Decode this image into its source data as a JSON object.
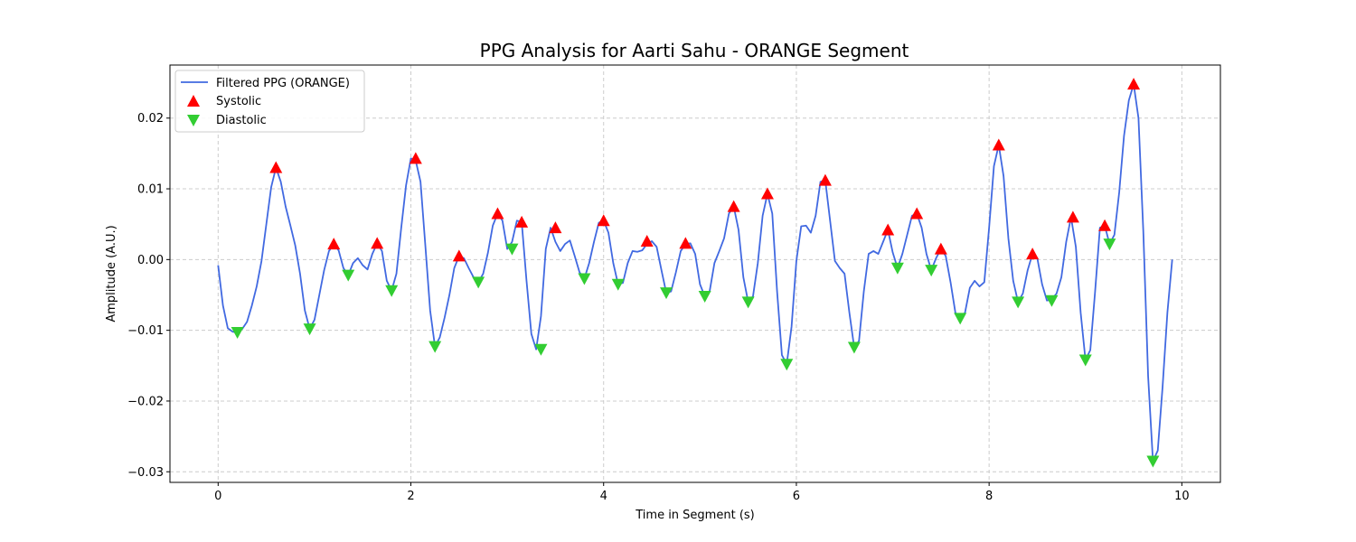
{
  "chart_data": {
    "type": "line",
    "title": "PPG Analysis for Aarti Sahu - ORANGE Segment",
    "xlabel": "Time in Segment (s)",
    "ylabel": "Amplitude (A.U.)",
    "xlim": [
      -0.5,
      10.4
    ],
    "ylim": [
      -0.0315,
      0.0275
    ],
    "xticks": [
      0,
      2,
      4,
      6,
      8,
      10
    ],
    "xtick_labels": [
      "0",
      "2",
      "4",
      "6",
      "8",
      "10"
    ],
    "yticks": [
      0.02,
      0.01,
      0.0,
      -0.01,
      -0.02,
      -0.03
    ],
    "ytick_labels": [
      "0.02",
      "0.01",
      "0.00",
      "−0.01",
      "−0.02",
      "−0.03"
    ],
    "grid": true,
    "legend_position": "top-left",
    "series": [
      {
        "name": "Filtered PPG (ORANGE)",
        "kind": "line",
        "color": "#4169e1",
        "x": [
          0.0,
          0.05,
          0.1,
          0.15,
          0.2,
          0.25,
          0.3,
          0.35,
          0.4,
          0.45,
          0.5,
          0.55,
          0.6,
          0.65,
          0.7,
          0.75,
          0.8,
          0.85,
          0.9,
          0.95,
          1.0,
          1.05,
          1.1,
          1.15,
          1.2,
          1.25,
          1.3,
          1.35,
          1.4,
          1.45,
          1.5,
          1.55,
          1.6,
          1.65,
          1.7,
          1.75,
          1.8,
          1.85,
          1.9,
          1.95,
          2.0,
          2.05,
          2.1,
          2.15,
          2.2,
          2.25,
          2.3,
          2.35,
          2.4,
          2.45,
          2.5,
          2.55,
          2.6,
          2.65,
          2.7,
          2.75,
          2.8,
          2.85,
          2.9,
          2.95,
          3.0,
          3.05,
          3.1,
          3.15,
          3.2,
          3.25,
          3.3,
          3.35,
          3.4,
          3.45,
          3.5,
          3.55,
          3.6,
          3.65,
          3.7,
          3.75,
          3.8,
          3.85,
          3.9,
          3.95,
          4.0,
          4.05,
          4.1,
          4.15,
          4.2,
          4.25,
          4.3,
          4.35,
          4.4,
          4.45,
          4.5,
          4.55,
          4.6,
          4.65,
          4.7,
          4.75,
          4.8,
          4.85,
          4.9,
          4.95,
          5.0,
          5.05,
          5.1,
          5.15,
          5.2,
          5.25,
          5.3,
          5.35,
          5.4,
          5.45,
          5.5,
          5.55,
          5.6,
          5.65,
          5.7,
          5.75,
          5.8,
          5.85,
          5.9,
          5.95,
          6.0,
          6.05,
          6.1,
          6.15,
          6.2,
          6.25,
          6.3,
          6.35,
          6.4,
          6.45,
          6.5,
          6.55,
          6.6,
          6.65,
          6.7,
          6.75,
          6.8,
          6.85,
          6.9,
          6.95,
          7.0,
          7.05,
          7.1,
          7.15,
          7.2,
          7.25,
          7.3,
          7.35,
          7.4,
          7.45,
          7.5,
          7.55,
          7.6,
          7.65,
          7.7,
          7.75,
          7.8,
          7.85,
          7.9,
          7.95,
          8.0,
          8.05,
          8.1,
          8.15,
          8.2,
          8.25,
          8.3,
          8.35,
          8.4,
          8.45,
          8.5,
          8.55,
          8.6,
          8.65,
          8.7,
          8.75,
          8.8,
          8.85,
          8.9,
          8.95,
          9.0,
          9.05,
          9.1,
          9.15,
          9.2,
          9.25,
          9.3,
          9.35,
          9.4,
          9.45,
          9.5,
          9.55,
          9.6,
          9.65,
          9.7,
          9.75,
          9.8,
          9.85,
          9.9
        ],
        "y": [
          -0.0008,
          -0.0065,
          -0.0097,
          -0.0102,
          -0.0103,
          -0.0098,
          -0.0088,
          -0.0065,
          -0.0038,
          -0.0002,
          0.005,
          0.0102,
          0.013,
          0.011,
          0.0075,
          0.0048,
          0.002,
          -0.002,
          -0.0072,
          -0.0098,
          -0.0085,
          -0.005,
          -0.0015,
          0.0012,
          0.0022,
          0.0013,
          -0.0012,
          -0.0022,
          -0.0005,
          0.0002,
          -0.0008,
          -0.0014,
          0.0008,
          0.0023,
          0.0012,
          -0.003,
          -0.0044,
          -0.002,
          0.0045,
          0.0105,
          0.0143,
          0.014,
          0.011,
          0.002,
          -0.0072,
          -0.0123,
          -0.011,
          -0.0082,
          -0.005,
          -0.0012,
          0.0005,
          0.0002,
          -0.0012,
          -0.0025,
          -0.0032,
          -0.002,
          0.001,
          0.0048,
          0.0065,
          0.0055,
          0.0015,
          0.0025,
          0.0055,
          0.0053,
          -0.003,
          -0.0105,
          -0.0127,
          -0.008,
          0.0015,
          0.0045,
          0.0025,
          0.0012,
          0.0022,
          0.0027,
          0.0005,
          -0.0018,
          -0.0027,
          -0.0005,
          0.0025,
          0.0052,
          0.0055,
          0.0038,
          -0.0005,
          -0.0035,
          -0.0033,
          -0.0005,
          0.0012,
          0.0011,
          0.0013,
          0.0022,
          0.0026,
          0.0018,
          -0.0015,
          -0.0047,
          -0.0045,
          -0.0018,
          0.0012,
          0.0022,
          0.0023,
          0.0008,
          -0.0035,
          -0.0052,
          -0.0045,
          -0.0005,
          0.0012,
          0.003,
          0.0065,
          0.0075,
          0.0042,
          -0.0025,
          -0.006,
          -0.0052,
          -0.0005,
          0.0062,
          0.0093,
          0.0065,
          -0.0045,
          -0.0135,
          -0.0148,
          -0.0095,
          -0.0002,
          0.0047,
          0.0048,
          0.0038,
          0.0062,
          0.011,
          0.0112,
          0.0055,
          -0.0002,
          -0.0012,
          -0.002,
          -0.0075,
          -0.0124,
          -0.0115,
          -0.0045,
          0.0008,
          0.0012,
          0.0008,
          0.0025,
          0.0042,
          0.001,
          -0.0012,
          0.0008,
          0.0035,
          0.0062,
          0.0065,
          0.0045,
          0.0008,
          -0.0015,
          0.0002,
          0.0015,
          0.0005,
          -0.0032,
          -0.0075,
          -0.0083,
          -0.0075,
          -0.004,
          -0.003,
          -0.0038,
          -0.0032,
          0.0045,
          0.0132,
          0.0162,
          0.0118,
          0.003,
          -0.003,
          -0.006,
          -0.0048,
          -0.0015,
          0.0008,
          0.0002,
          -0.0035,
          -0.0058,
          -0.0056,
          -0.0048,
          -0.0025,
          0.0025,
          0.006,
          0.0018,
          -0.0075,
          -0.0142,
          -0.0128,
          -0.0045,
          0.0045,
          0.0048,
          0.0022,
          0.0035,
          0.0095,
          0.0175,
          0.0225,
          0.0248,
          0.02,
          0.004,
          -0.0165,
          -0.0285,
          -0.027,
          -0.018,
          -0.0075,
          0.0
        ]
      },
      {
        "name": "Systolic",
        "kind": "marker-up",
        "color": "#ff0000",
        "x": [
          0.6,
          1.2,
          1.65,
          2.05,
          2.5,
          2.9,
          3.15,
          3.5,
          4.0,
          4.45,
          4.85,
          5.35,
          5.7,
          6.3,
          6.95,
          7.25,
          7.5,
          8.1,
          8.45,
          8.87,
          9.2,
          9.5
        ],
        "y": [
          0.013,
          0.0022,
          0.0023,
          0.0143,
          0.0005,
          0.0065,
          0.0053,
          0.0045,
          0.0055,
          0.0026,
          0.0023,
          0.0075,
          0.0093,
          0.0112,
          0.0042,
          0.0065,
          0.0015,
          0.0162,
          0.0008,
          0.006,
          0.0048,
          0.0248
        ]
      },
      {
        "name": "Diastolic",
        "kind": "marker-down",
        "color": "#32cd32",
        "x": [
          0.2,
          0.95,
          1.35,
          1.8,
          2.25,
          2.7,
          3.05,
          3.35,
          3.8,
          4.15,
          4.65,
          5.05,
          5.5,
          5.9,
          6.6,
          7.05,
          7.4,
          7.7,
          8.3,
          8.65,
          9.0,
          9.25,
          9.7
        ],
        "y": [
          -0.0103,
          -0.0098,
          -0.0022,
          -0.0044,
          -0.0123,
          -0.0032,
          0.0015,
          -0.0127,
          -0.0027,
          -0.0035,
          -0.0047,
          -0.0052,
          -0.006,
          -0.0148,
          -0.0124,
          -0.0012,
          -0.0015,
          -0.0083,
          -0.006,
          -0.0058,
          -0.0142,
          0.0022,
          -0.0285
        ]
      }
    ]
  }
}
